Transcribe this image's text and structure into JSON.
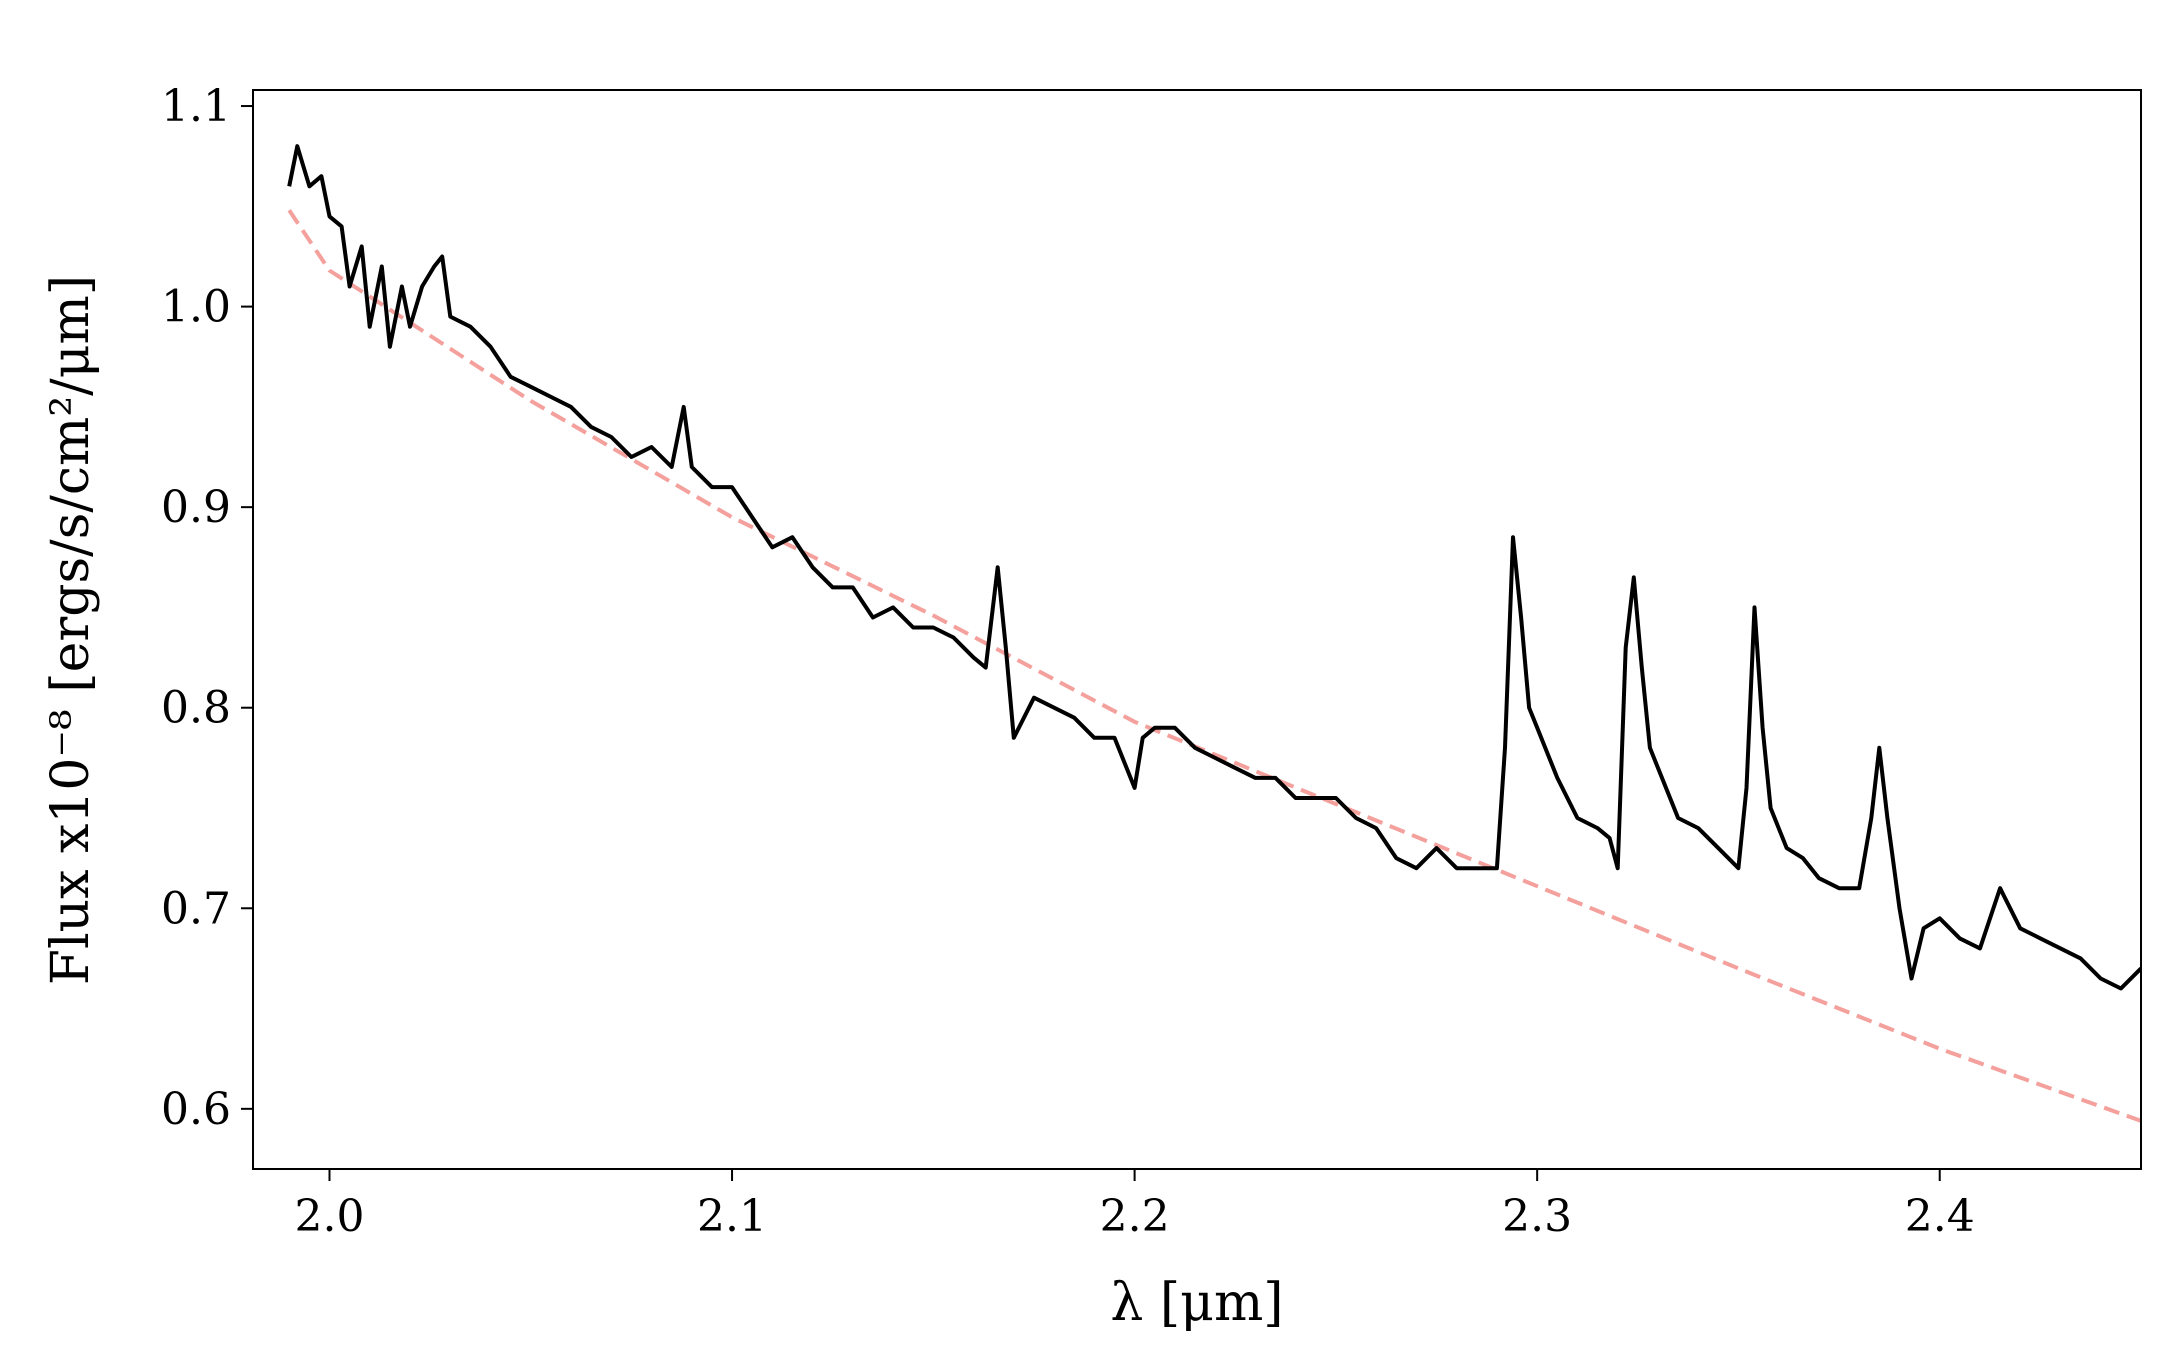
{
  "chart_data": {
    "type": "line",
    "xlabel": "λ [μm]",
    "ylabel": "Flux x10⁻⁸ [ergs/s/cm²/μm]",
    "xlim": [
      1.981,
      2.45
    ],
    "ylim": [
      0.57,
      1.108
    ],
    "xticks": [
      {
        "value": 2.0,
        "label": "2.0"
      },
      2.1,
      2.2,
      2.3,
      2.4
    ],
    "yticks": [
      0.6,
      0.7,
      0.8,
      0.9,
      {
        "value": 1.0,
        "label": "1.0"
      },
      1.1
    ],
    "series": [
      {
        "color": "#f4a09c",
        "linestyle": "dashed",
        "x": [
          1.99,
          2.0,
          2.05,
          2.1,
          2.15,
          2.2,
          2.25,
          2.3,
          2.35,
          2.4,
          2.45
        ],
        "values": [
          1.048,
          1.018,
          0.953,
          0.895,
          0.846,
          0.793,
          0.752,
          0.711,
          0.67,
          0.63,
          0.594
        ]
      },
      {
        "color": "#000000",
        "linestyle": "solid",
        "x": [
          1.99,
          1.992,
          1.995,
          1.998,
          2.0,
          2.003,
          2.005,
          2.008,
          2.01,
          2.013,
          2.015,
          2.018,
          2.02,
          2.023,
          2.026,
          2.028,
          2.03,
          2.035,
          2.04,
          2.045,
          2.05,
          2.055,
          2.06,
          2.065,
          2.07,
          2.075,
          2.08,
          2.085,
          2.088,
          2.09,
          2.095,
          2.1,
          2.105,
          2.11,
          2.115,
          2.12,
          2.125,
          2.13,
          2.135,
          2.14,
          2.145,
          2.15,
          2.155,
          2.16,
          2.163,
          2.166,
          2.168,
          2.17,
          2.175,
          2.18,
          2.185,
          2.19,
          2.195,
          2.2,
          2.202,
          2.205,
          2.21,
          2.215,
          2.22,
          2.225,
          2.23,
          2.235,
          2.24,
          2.245,
          2.25,
          2.255,
          2.26,
          2.265,
          2.27,
          2.275,
          2.28,
          2.285,
          2.29,
          2.292,
          2.294,
          2.296,
          2.298,
          2.3,
          2.305,
          2.31,
          2.315,
          2.318,
          2.32,
          2.322,
          2.324,
          2.326,
          2.328,
          2.332,
          2.335,
          2.34,
          2.345,
          2.35,
          2.352,
          2.354,
          2.356,
          2.358,
          2.362,
          2.366,
          2.37,
          2.375,
          2.38,
          2.383,
          2.385,
          2.387,
          2.39,
          2.393,
          2.396,
          2.4,
          2.405,
          2.41,
          2.415,
          2.42,
          2.425,
          2.43,
          2.435,
          2.44,
          2.445,
          2.45
        ],
        "values": [
          1.06,
          1.08,
          1.06,
          1.065,
          1.045,
          1.04,
          1.01,
          1.03,
          0.99,
          1.02,
          0.98,
          1.01,
          0.99,
          1.01,
          1.02,
          1.025,
          0.995,
          0.99,
          0.98,
          0.965,
          0.96,
          0.955,
          0.95,
          0.94,
          0.935,
          0.925,
          0.93,
          0.92,
          0.95,
          0.92,
          0.91,
          0.91,
          0.895,
          0.88,
          0.885,
          0.87,
          0.86,
          0.86,
          0.845,
          0.85,
          0.84,
          0.84,
          0.835,
          0.825,
          0.82,
          0.87,
          0.83,
          0.785,
          0.805,
          0.8,
          0.795,
          0.785,
          0.785,
          0.76,
          0.785,
          0.79,
          0.79,
          0.78,
          0.775,
          0.77,
          0.765,
          0.765,
          0.755,
          0.755,
          0.755,
          0.745,
          0.74,
          0.725,
          0.72,
          0.73,
          0.72,
          0.72,
          0.72,
          0.78,
          0.885,
          0.845,
          0.8,
          0.79,
          0.765,
          0.745,
          0.74,
          0.735,
          0.72,
          0.83,
          0.865,
          0.82,
          0.78,
          0.76,
          0.745,
          0.74,
          0.73,
          0.72,
          0.76,
          0.85,
          0.79,
          0.75,
          0.73,
          0.725,
          0.715,
          0.71,
          0.71,
          0.745,
          0.78,
          0.745,
          0.7,
          0.665,
          0.69,
          0.695,
          0.685,
          0.68,
          0.71,
          0.69,
          0.685,
          0.68,
          0.675,
          0.665,
          0.66,
          0.67
        ]
      }
    ]
  }
}
